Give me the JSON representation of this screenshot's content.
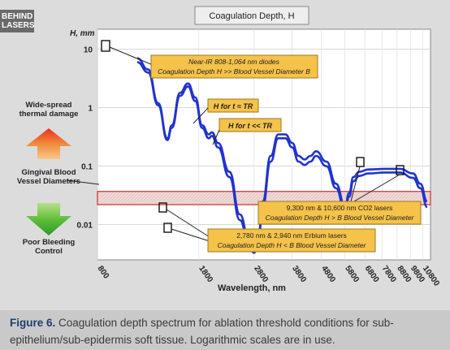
{
  "logo": {
    "line1": "BEHIND",
    "line2": "LASERS"
  },
  "chart_data": {
    "type": "line",
    "title": "Coagulation Depth, H",
    "xlabel": "Wavelength, nm",
    "ylabel": "H, mm",
    "x_ticks": [
      "800",
      "1800",
      "2800",
      "3800",
      "4800",
      "5800",
      "6800",
      "7800",
      "8800",
      "9800",
      "10800"
    ],
    "y_ticks": [
      "10",
      "1",
      "0.1",
      "0.01"
    ],
    "x_scale": "log",
    "y_scale": "log",
    "xlim": [
      800,
      11500
    ],
    "ylim": [
      0.0025,
      22
    ],
    "series": [
      {
        "x": [
          1100,
          1200,
          1300,
          1400,
          1450,
          1550,
          1650,
          1750,
          1850,
          1950,
          2000,
          2100,
          2300,
          2500,
          2700,
          2800,
          2900,
          3000,
          3200,
          3400,
          3600,
          3800,
          4000,
          4200,
          4400,
          4600,
          5000,
          5400,
          5800,
          6000,
          6200,
          6500,
          7000,
          8000,
          9000,
          10000,
          10600,
          11200
        ],
        "values": [
          7,
          4.5,
          1.2,
          0.3,
          0.5,
          1.8,
          2.6,
          1.5,
          0.5,
          0.35,
          0.38,
          0.25,
          0.08,
          0.015,
          0.005,
          0.004,
          0.006,
          0.025,
          0.15,
          0.35,
          0.35,
          0.25,
          0.15,
          0.13,
          0.15,
          0.18,
          0.12,
          0.05,
          0.021,
          0.035,
          0.065,
          0.08,
          0.088,
          0.09,
          0.09,
          0.075,
          0.05,
          0.025
        ]
      },
      {
        "x": [
          1100,
          1200,
          1300,
          1400,
          1450,
          1550,
          1650,
          1750,
          1850,
          1950,
          2000,
          2100,
          2300,
          2500,
          2700,
          2800,
          2900,
          3000,
          3200,
          3400,
          3600,
          3800,
          4000,
          4200,
          4400,
          4600,
          5000,
          5400,
          5800,
          6000,
          6200,
          6500,
          7000,
          8000,
          9000,
          10000,
          10600,
          11200
        ],
        "values": [
          6,
          4.0,
          1.1,
          0.28,
          0.45,
          1.6,
          2.3,
          1.3,
          0.45,
          0.3,
          0.33,
          0.21,
          0.065,
          0.012,
          0.004,
          0.0033,
          0.005,
          0.02,
          0.12,
          0.3,
          0.3,
          0.21,
          0.12,
          0.105,
          0.12,
          0.15,
          0.1,
          0.042,
          0.017,
          0.03,
          0.055,
          0.068,
          0.075,
          0.078,
          0.078,
          0.063,
          0.042,
          0.02
        ]
      }
    ],
    "band": {
      "y_low": 0.022,
      "y_high": 0.037,
      "label": "Gingival Blood Vessel Diameters"
    },
    "side_labels": {
      "top": "Wide-spread thermal damage",
      "bottom": "Poor Bleeding Control"
    },
    "annotations": [
      {
        "line1": "Near-IR 808-1,064 nm diodes",
        "line2": "Coagulation Depth H >> Blood Vessel Diameter B"
      },
      {
        "text": "H for t ≈ TR"
      },
      {
        "text": "H for t << TR"
      },
      {
        "line1": "9,300 nm & 10,600 nm CO2 lasers",
        "line2": "Coagulation Depth H > B Blood Vessel Diameter"
      },
      {
        "line1": "2,780 nm & 2,940 nm Erbium lasers",
        "line2": "Coagulation Depth H < B Blood Vessel Diameter"
      }
    ]
  },
  "caption": {
    "label": "Figure 6.",
    "text": "Coagulation depth spectrum for ablation threshold conditions for sub-epithelium/sub-epidermis soft tissue. Logarithmic scales are in use."
  }
}
